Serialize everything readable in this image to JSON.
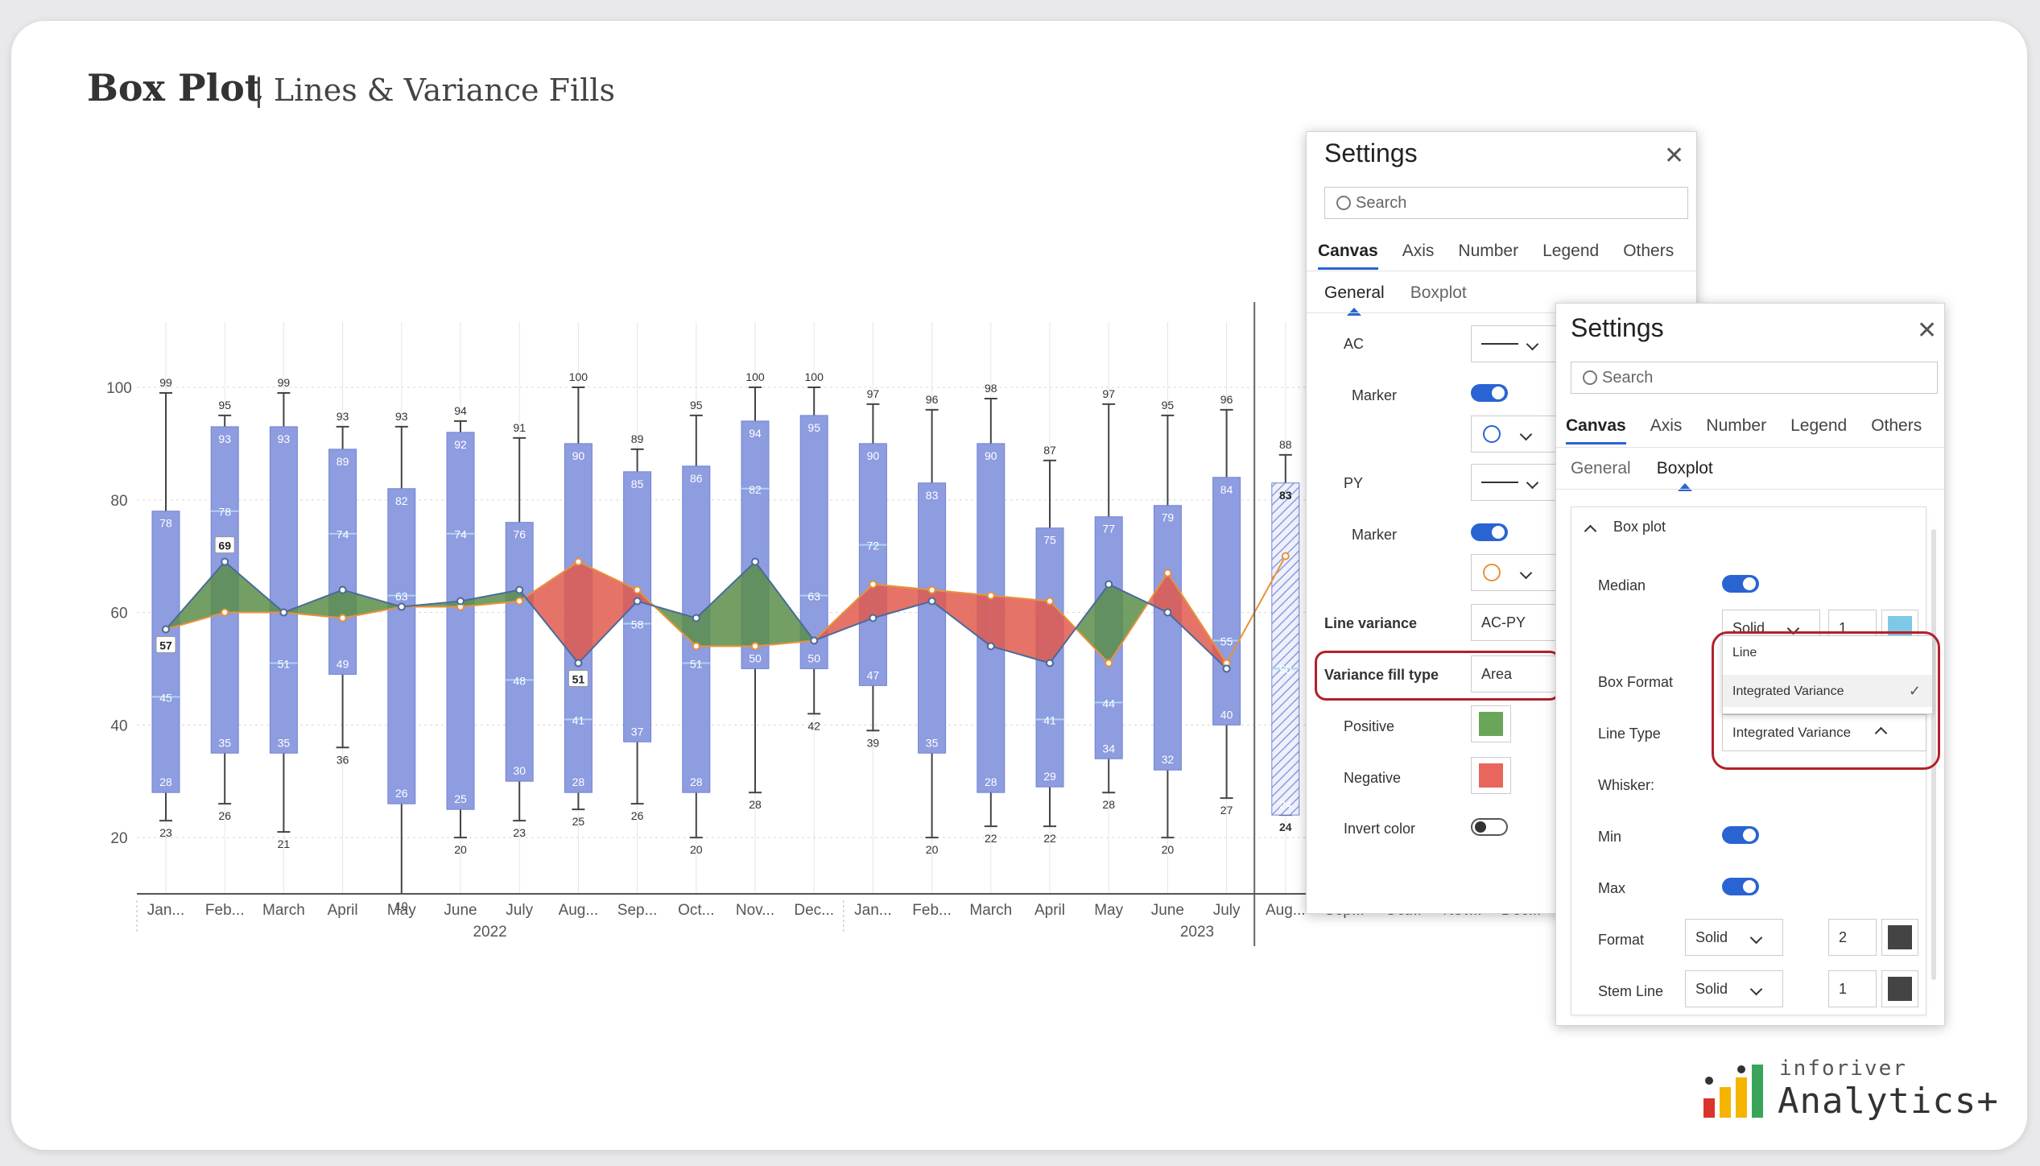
{
  "page": {
    "title": "Box Plot",
    "subtitle": "| Lines & Variance Fills"
  },
  "chart_data": {
    "type": "box",
    "y_ticks": [
      20,
      40,
      60,
      80,
      100
    ],
    "ylim": [
      10,
      103
    ],
    "x_year_labels": [
      "2022",
      "2023"
    ],
    "categories": [
      "Jan...",
      "Feb...",
      "March",
      "April",
      "May",
      "June",
      "July",
      "Aug...",
      "Sep...",
      "Oct...",
      "Nov...",
      "Dec...",
      "Jan...",
      "Feb...",
      "March",
      "April",
      "May",
      "June",
      "July",
      "Aug...",
      "Sep...",
      "Oct...",
      "Nov...",
      "Dec..."
    ],
    "boxes": [
      {
        "max": 99,
        "q3": 78,
        "median": 45,
        "q1": 28,
        "min": 23
      },
      {
        "max": 95,
        "q3": 93,
        "median": 78,
        "q1": 35,
        "min": 26
      },
      {
        "max": 99,
        "q3": 93,
        "median": 51,
        "q1": 35,
        "min": 21
      },
      {
        "max": 93,
        "q3": 89,
        "median": 74,
        "q1": 49,
        "min": 36
      },
      {
        "max": 93,
        "q3": 82,
        "median": 63,
        "q1": 26,
        "min": 10
      },
      {
        "max": 94,
        "q3": 92,
        "median": 74,
        "q1": 25,
        "min": 20
      },
      {
        "max": 91,
        "q3": 76,
        "median": 48,
        "q1": 30,
        "min": 23
      },
      {
        "max": 100,
        "q3": 90,
        "median": 41,
        "q1": 28,
        "min": 25
      },
      {
        "max": 89,
        "q3": 85,
        "median": 58,
        "q1": 37,
        "min": 26
      },
      {
        "max": 95,
        "q3": 86,
        "median": 51,
        "q1": 28,
        "min": 20
      },
      {
        "max": 100,
        "q3": 94,
        "median": 82,
        "q1": 50,
        "min": 28
      },
      {
        "max": 100,
        "q3": 95,
        "median": 63,
        "q1": 50,
        "min": 42
      },
      {
        "max": 97,
        "q3": 90,
        "median": 72,
        "q1": 47,
        "min": 39
      },
      {
        "max": 96,
        "q3": 83,
        "median": null,
        "q1": 35,
        "min": 20
      },
      {
        "max": 98,
        "q3": 90,
        "median": null,
        "q1": 28,
        "min": 22
      },
      {
        "max": 87,
        "q3": 75,
        "median": 41,
        "q1": 29,
        "min": 22
      },
      {
        "max": 97,
        "q3": 77,
        "median": 44,
        "q1": 34,
        "min": 28
      },
      {
        "max": 95,
        "q3": 79,
        "median": null,
        "q1": 32,
        "min": 20
      },
      {
        "max": 96,
        "q3": 84,
        "median": 55,
        "q1": 40,
        "min": 27
      },
      {
        "max": 88,
        "q3": 83,
        "median": 50,
        "q1": 24,
        "min": 24,
        "forecast": true
      }
    ],
    "series": [
      {
        "name": "AC",
        "values": [
          57,
          69,
          60,
          64,
          61,
          62,
          64,
          51,
          62,
          59,
          69,
          55,
          59,
          62,
          54,
          51,
          65,
          60,
          50,
          null
        ]
      },
      {
        "name": "PY",
        "values": [
          57,
          60,
          60,
          59,
          61,
          61,
          62,
          69,
          64,
          54,
          54,
          55,
          65,
          64,
          63,
          62,
          51,
          67,
          51,
          70
        ]
      }
    ],
    "value_labels": [
      {
        "index": 0,
        "series": "AC",
        "text": "57"
      },
      {
        "index": 1,
        "series": "AC",
        "text": "69"
      },
      {
        "index": 7,
        "series": "AC",
        "text": "51"
      }
    ],
    "colors": {
      "box": "#8e9ce0",
      "box_stroke": "#7383d4",
      "positive": "#5b8e4a",
      "negative": "#e05a4e",
      "ac_line": "#4a6a9a",
      "py_line": "#e8923a"
    }
  },
  "panel1": {
    "title": "Settings",
    "search_placeholder": "Search",
    "tabs": [
      "Canvas",
      "Axis",
      "Number",
      "Legend",
      "Others"
    ],
    "subtabs": [
      "General",
      "Boxplot"
    ],
    "labels": {
      "ac": "AC",
      "marker1": "Marker",
      "py": "PY",
      "marker2": "Marker",
      "line_variance": "Line variance",
      "variance_fill_type": "Variance fill type",
      "positive": "Positive",
      "negative": "Negative",
      "invert_color": "Invert color"
    },
    "values": {
      "line_variance": "AC-PY",
      "variance_fill_type": "Area"
    },
    "colors": {
      "positive": "#6aa65a",
      "negative": "#e8665e"
    }
  },
  "panel2": {
    "title": "Settings",
    "search_placeholder": "Search",
    "tabs": [
      "Canvas",
      "Axis",
      "Number",
      "Legend",
      "Others"
    ],
    "subtabs": [
      "General",
      "Boxplot"
    ],
    "section": "Box plot",
    "labels": {
      "median": "Median",
      "box_format": "Box Format",
      "line_type": "Line Type",
      "whisker": "Whisker:",
      "min": "Min",
      "max": "Max",
      "format": "Format",
      "stem_line": "Stem Line"
    },
    "median_style": "Solid",
    "median_width": "1",
    "line_type_value": "Integrated Variance",
    "dropdown_options": [
      "Line",
      "Integrated Variance"
    ],
    "format_style": "Solid",
    "format_width": "2",
    "stem_style": "Solid",
    "stem_width": "1"
  },
  "brand": {
    "top": "inforiver",
    "bottom": "Analytics+"
  }
}
